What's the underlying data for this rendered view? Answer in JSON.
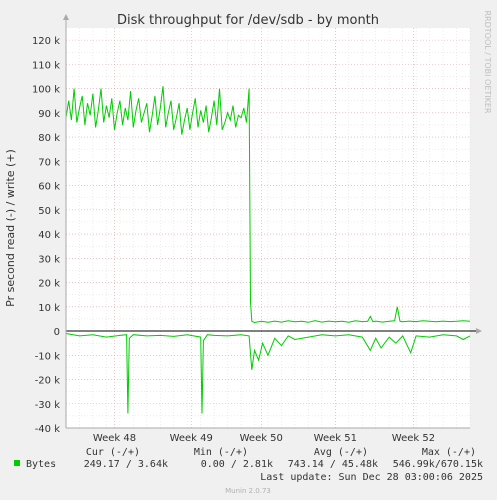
{
  "chart_data": {
    "type": "line",
    "title": "Disk throughput for /dev/sdb - by month",
    "ylabel": "Pr second read (-) / write (+)",
    "side_label": "RRDTOOL / TOBI OETIKER",
    "ylim": [
      -40000,
      125000
    ],
    "y_ticks": [
      {
        "v": 120000,
        "label": "120 k"
      },
      {
        "v": 110000,
        "label": "110 k"
      },
      {
        "v": 100000,
        "label": "100 k"
      },
      {
        "v": 90000,
        "label": "90 k"
      },
      {
        "v": 80000,
        "label": "80 k"
      },
      {
        "v": 70000,
        "label": "70 k"
      },
      {
        "v": 60000,
        "label": "60 k"
      },
      {
        "v": 50000,
        "label": "50 k"
      },
      {
        "v": 40000,
        "label": "40 k"
      },
      {
        "v": 30000,
        "label": "30 k"
      },
      {
        "v": 20000,
        "label": "20 k"
      },
      {
        "v": 10000,
        "label": "10 k"
      },
      {
        "v": 0,
        "label": "0"
      },
      {
        "v": -10000,
        "label": "-10 k"
      },
      {
        "v": -20000,
        "label": "-20 k"
      },
      {
        "v": -30000,
        "label": "-30 k"
      },
      {
        "v": -40000,
        "label": "-40 k"
      }
    ],
    "x_labels": [
      "Week 48",
      "Week 49",
      "Week 50",
      "Week 51",
      "Week 52"
    ],
    "write_series_positive": [
      {
        "x": 0.0,
        "y": 88000
      },
      {
        "x": 0.2,
        "y": 95000
      },
      {
        "x": 0.4,
        "y": 87000
      },
      {
        "x": 0.6,
        "y": 100000
      },
      {
        "x": 0.8,
        "y": 86000
      },
      {
        "x": 1.0,
        "y": 92000
      },
      {
        "x": 1.2,
        "y": 97000
      },
      {
        "x": 1.4,
        "y": 85000
      },
      {
        "x": 1.6,
        "y": 94000
      },
      {
        "x": 1.8,
        "y": 89000
      },
      {
        "x": 2.0,
        "y": 98000
      },
      {
        "x": 2.2,
        "y": 84000
      },
      {
        "x": 2.4,
        "y": 91000
      },
      {
        "x": 2.6,
        "y": 100000
      },
      {
        "x": 2.8,
        "y": 86000
      },
      {
        "x": 3.0,
        "y": 93000
      },
      {
        "x": 3.2,
        "y": 88000
      },
      {
        "x": 3.4,
        "y": 96000
      },
      {
        "x": 3.6,
        "y": 83000
      },
      {
        "x": 3.8,
        "y": 90000
      },
      {
        "x": 4.0,
        "y": 95000
      },
      {
        "x": 4.2,
        "y": 85000
      },
      {
        "x": 4.4,
        "y": 92000
      },
      {
        "x": 4.6,
        "y": 87000
      },
      {
        "x": 4.8,
        "y": 99000
      },
      {
        "x": 5.0,
        "y": 84000
      },
      {
        "x": 5.2,
        "y": 91000
      },
      {
        "x": 5.4,
        "y": 96000
      },
      {
        "x": 5.6,
        "y": 86000
      },
      {
        "x": 5.8,
        "y": 90000
      },
      {
        "x": 6.0,
        "y": 94000
      },
      {
        "x": 6.2,
        "y": 82000
      },
      {
        "x": 6.4,
        "y": 89000
      },
      {
        "x": 6.6,
        "y": 97000
      },
      {
        "x": 6.8,
        "y": 85000
      },
      {
        "x": 7.0,
        "y": 92000
      },
      {
        "x": 7.2,
        "y": 101000
      },
      {
        "x": 7.4,
        "y": 84000
      },
      {
        "x": 7.6,
        "y": 90000
      },
      {
        "x": 7.8,
        "y": 95000
      },
      {
        "x": 8.0,
        "y": 83000
      },
      {
        "x": 8.2,
        "y": 88000
      },
      {
        "x": 8.4,
        "y": 94000
      },
      {
        "x": 8.6,
        "y": 81000
      },
      {
        "x": 8.8,
        "y": 87000
      },
      {
        "x": 9.0,
        "y": 92000
      },
      {
        "x": 9.2,
        "y": 83000
      },
      {
        "x": 9.4,
        "y": 90000
      },
      {
        "x": 9.6,
        "y": 96000
      },
      {
        "x": 9.8,
        "y": 84000
      },
      {
        "x": 10.0,
        "y": 91000
      },
      {
        "x": 10.2,
        "y": 86000
      },
      {
        "x": 10.4,
        "y": 93000
      },
      {
        "x": 10.6,
        "y": 82000
      },
      {
        "x": 10.8,
        "y": 88000
      },
      {
        "x": 11.0,
        "y": 95000
      },
      {
        "x": 11.2,
        "y": 85000
      },
      {
        "x": 11.4,
        "y": 100000
      },
      {
        "x": 11.6,
        "y": 83000
      },
      {
        "x": 11.8,
        "y": 86000
      },
      {
        "x": 12.0,
        "y": 90000
      },
      {
        "x": 12.2,
        "y": 87000
      },
      {
        "x": 12.4,
        "y": 93000
      },
      {
        "x": 12.6,
        "y": 84000
      },
      {
        "x": 12.8,
        "y": 89000
      },
      {
        "x": 13.0,
        "y": 88000
      },
      {
        "x": 13.2,
        "y": 92000
      },
      {
        "x": 13.4,
        "y": 86000
      },
      {
        "x": 13.6,
        "y": 100000
      },
      {
        "x": 13.7,
        "y": 12000
      },
      {
        "x": 13.8,
        "y": 4000
      },
      {
        "x": 14.0,
        "y": 3500
      },
      {
        "x": 14.5,
        "y": 4000
      },
      {
        "x": 15.0,
        "y": 3600
      },
      {
        "x": 15.5,
        "y": 4100
      },
      {
        "x": 16.0,
        "y": 3700
      },
      {
        "x": 16.5,
        "y": 4200
      },
      {
        "x": 17.0,
        "y": 3800
      },
      {
        "x": 17.5,
        "y": 4000
      },
      {
        "x": 18.0,
        "y": 3600
      },
      {
        "x": 18.5,
        "y": 4300
      },
      {
        "x": 19.0,
        "y": 3700
      },
      {
        "x": 19.5,
        "y": 4100
      },
      {
        "x": 20.0,
        "y": 3800
      },
      {
        "x": 20.5,
        "y": 4000
      },
      {
        "x": 21.0,
        "y": 3600
      },
      {
        "x": 21.5,
        "y": 4200
      },
      {
        "x": 22.0,
        "y": 3900
      },
      {
        "x": 22.4,
        "y": 4000
      },
      {
        "x": 22.6,
        "y": 6000
      },
      {
        "x": 22.8,
        "y": 3800
      },
      {
        "x": 23.0,
        "y": 4100
      },
      {
        "x": 23.5,
        "y": 3700
      },
      {
        "x": 24.0,
        "y": 4000
      },
      {
        "x": 24.4,
        "y": 4200
      },
      {
        "x": 24.6,
        "y": 10000
      },
      {
        "x": 24.8,
        "y": 4000
      },
      {
        "x": 25.0,
        "y": 3800
      },
      {
        "x": 25.5,
        "y": 4100
      },
      {
        "x": 26.0,
        "y": 3900
      },
      {
        "x": 26.5,
        "y": 4200
      },
      {
        "x": 27.0,
        "y": 4000
      },
      {
        "x": 27.5,
        "y": 3800
      },
      {
        "x": 28.0,
        "y": 4100
      },
      {
        "x": 28.5,
        "y": 3900
      },
      {
        "x": 29.0,
        "y": 4000
      },
      {
        "x": 29.5,
        "y": 4200
      },
      {
        "x": 30.0,
        "y": 4000
      }
    ],
    "read_series_negative": [
      {
        "x": 0.0,
        "y": -1000
      },
      {
        "x": 1.0,
        "y": -2000
      },
      {
        "x": 2.0,
        "y": -1500
      },
      {
        "x": 3.0,
        "y": -2500
      },
      {
        "x": 4.0,
        "y": -1800
      },
      {
        "x": 4.5,
        "y": -1500
      },
      {
        "x": 4.6,
        "y": -34000
      },
      {
        "x": 4.7,
        "y": -3000
      },
      {
        "x": 5.0,
        "y": -1500
      },
      {
        "x": 6.0,
        "y": -2000
      },
      {
        "x": 7.0,
        "y": -1800
      },
      {
        "x": 8.0,
        "y": -2200
      },
      {
        "x": 9.0,
        "y": -1500
      },
      {
        "x": 10.0,
        "y": -2500
      },
      {
        "x": 10.1,
        "y": -34000
      },
      {
        "x": 10.2,
        "y": -4000
      },
      {
        "x": 10.5,
        "y": -1500
      },
      {
        "x": 11.0,
        "y": -1800
      },
      {
        "x": 12.0,
        "y": -2000
      },
      {
        "x": 13.0,
        "y": -1500
      },
      {
        "x": 13.6,
        "y": -2000
      },
      {
        "x": 13.8,
        "y": -16000
      },
      {
        "x": 14.0,
        "y": -8000
      },
      {
        "x": 14.3,
        "y": -12000
      },
      {
        "x": 14.6,
        "y": -5000
      },
      {
        "x": 15.0,
        "y": -10000
      },
      {
        "x": 15.5,
        "y": -3000
      },
      {
        "x": 16.0,
        "y": -6000
      },
      {
        "x": 16.5,
        "y": -2000
      },
      {
        "x": 17.0,
        "y": -3500
      },
      {
        "x": 18.0,
        "y": -2500
      },
      {
        "x": 19.0,
        "y": -1500
      },
      {
        "x": 20.0,
        "y": -2000
      },
      {
        "x": 21.0,
        "y": -1500
      },
      {
        "x": 22.0,
        "y": -2500
      },
      {
        "x": 22.6,
        "y": -8000
      },
      {
        "x": 23.0,
        "y": -3000
      },
      {
        "x": 23.4,
        "y": -7000
      },
      {
        "x": 24.0,
        "y": -2500
      },
      {
        "x": 24.5,
        "y": -5000
      },
      {
        "x": 25.0,
        "y": -2000
      },
      {
        "x": 25.6,
        "y": -9000
      },
      {
        "x": 26.0,
        "y": -2000
      },
      {
        "x": 27.0,
        "y": -2500
      },
      {
        "x": 28.0,
        "y": -1500
      },
      {
        "x": 29.0,
        "y": -2000
      },
      {
        "x": 29.5,
        "y": -3500
      },
      {
        "x": 30.0,
        "y": -2000
      }
    ],
    "x_range": [
      0,
      30
    ],
    "week_positions": [
      {
        "label": "Week 48",
        "x": 3.6
      },
      {
        "label": "Week 49",
        "x": 9.3
      },
      {
        "label": "Week 50",
        "x": 14.5
      },
      {
        "label": "Week 51",
        "x": 20.0
      },
      {
        "label": "Week 52",
        "x": 25.8
      }
    ],
    "colors": {
      "series": "#00cc00",
      "grid_major": "#e4a0a0",
      "grid_minor": "#d8d8d8",
      "axis": "#000000",
      "background": "#f0f0f0",
      "plot_background": "#ffffff"
    },
    "grid": true
  },
  "legend": {
    "headers": {
      "cur": "Cur (-/+)",
      "min": "Min (-/+)",
      "avg": "Avg (-/+)",
      "max": "Max (-/+)"
    },
    "series_name": "Bytes",
    "cur": "249.17 /  3.64k",
    "min": "0.00 /  2.81k",
    "avg": "743.14 / 45.48k",
    "max": "546.99k/670.15k"
  },
  "last_update": "Last update: Sun Dec 28 03:00:06 2025",
  "footer": "Munin 2.0.73"
}
